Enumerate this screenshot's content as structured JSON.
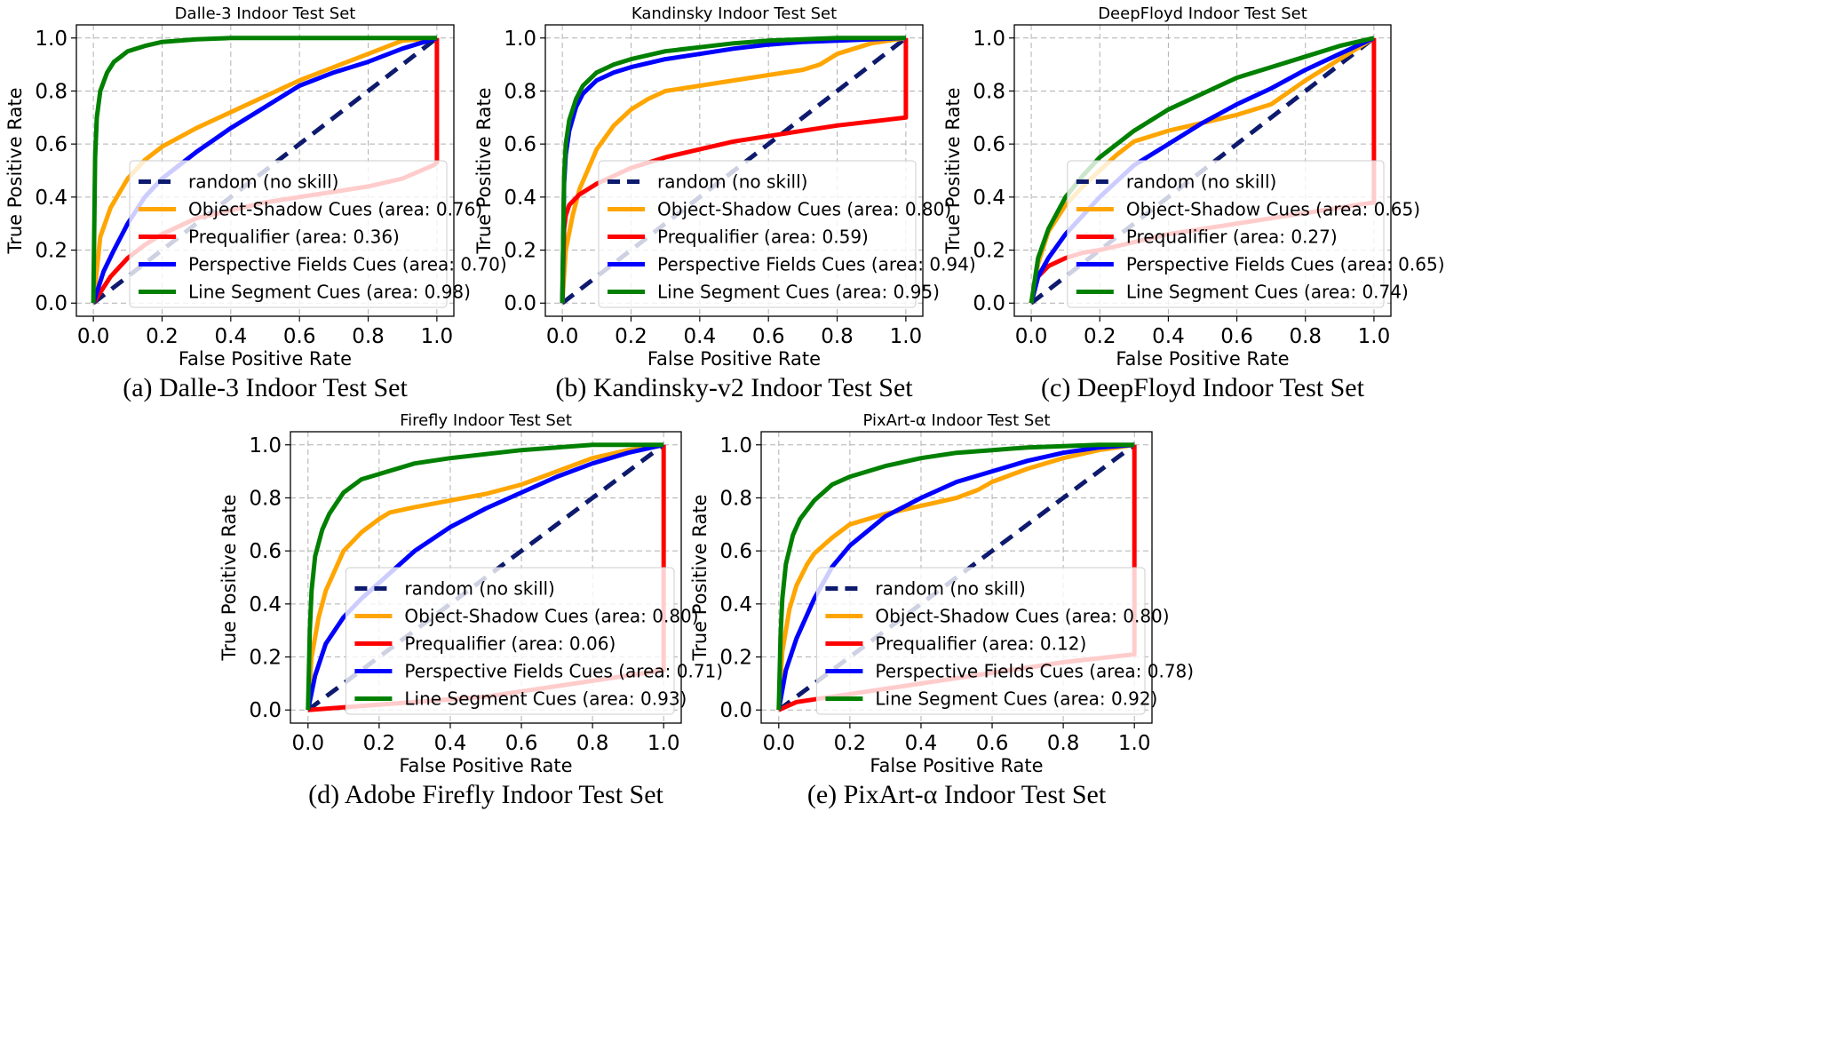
{
  "chart_data": [
    {
      "type": "line",
      "title": "Dalle-3 Indoor Test Set",
      "caption": "(a) Dalle-3 Indoor Test Set",
      "xlabel": "False Positive Rate",
      "ylabel": "True Positive Rate",
      "xlim": [
        0,
        1
      ],
      "ylim": [
        0,
        1
      ],
      "xticks": [
        "0.0",
        "0.2",
        "0.4",
        "0.6",
        "0.8",
        "1.0"
      ],
      "yticks": [
        "0.0",
        "0.2",
        "0.4",
        "0.6",
        "0.8",
        "1.0"
      ],
      "grid": true,
      "legend_position": "lower-right",
      "series": [
        {
          "name": "random (no skill)",
          "color": "#0d1a6e",
          "dashed": true,
          "x": [
            0,
            1
          ],
          "y": [
            0,
            1
          ]
        },
        {
          "name": "Object-Shadow Cues (area: 0.76)",
          "color": "#ffa500",
          "x": [
            0,
            0.02,
            0.05,
            0.1,
            0.15,
            0.2,
            0.3,
            0.4,
            0.5,
            0.6,
            0.7,
            0.8,
            0.9,
            1.0
          ],
          "y": [
            0,
            0.25,
            0.36,
            0.47,
            0.54,
            0.59,
            0.66,
            0.72,
            0.78,
            0.84,
            0.89,
            0.94,
            0.99,
            1.0
          ]
        },
        {
          "name": "Prequalifier (area: 0.36)",
          "color": "#ff0000",
          "x": [
            0,
            0.05,
            0.1,
            0.15,
            0.2,
            0.3,
            0.4,
            0.5,
            0.6,
            0.7,
            0.8,
            0.9,
            0.99,
            1.0,
            1.0
          ],
          "y": [
            0,
            0.1,
            0.17,
            0.22,
            0.26,
            0.32,
            0.35,
            0.38,
            0.4,
            0.42,
            0.44,
            0.47,
            0.52,
            0.53,
            1.0
          ]
        },
        {
          "name": "Perspective Fields Cues (area: 0.70)",
          "color": "#0000ff",
          "x": [
            0,
            0.03,
            0.06,
            0.1,
            0.15,
            0.2,
            0.3,
            0.4,
            0.5,
            0.6,
            0.7,
            0.8,
            0.9,
            1.0
          ],
          "y": [
            0,
            0.12,
            0.2,
            0.3,
            0.4,
            0.47,
            0.57,
            0.66,
            0.74,
            0.82,
            0.87,
            0.91,
            0.96,
            1.0
          ]
        },
        {
          "name": "Line Segment Cues (area: 0.98)",
          "color": "#008000",
          "x": [
            0,
            0.005,
            0.01,
            0.02,
            0.04,
            0.06,
            0.08,
            0.1,
            0.15,
            0.2,
            0.3,
            0.4,
            0.5,
            1.0
          ],
          "y": [
            0,
            0.55,
            0.7,
            0.8,
            0.87,
            0.91,
            0.93,
            0.95,
            0.97,
            0.985,
            0.995,
            1.0,
            1.0,
            1.0
          ]
        }
      ]
    },
    {
      "type": "line",
      "title": "Kandinsky Indoor Test Set",
      "caption": "(b) Kandinsky-v2 Indoor Test Set",
      "xlabel": "False Positive Rate",
      "ylabel": "True Positive Rate",
      "xlim": [
        0,
        1
      ],
      "ylim": [
        0,
        1
      ],
      "xticks": [
        "0.0",
        "0.2",
        "0.4",
        "0.6",
        "0.8",
        "1.0"
      ],
      "yticks": [
        "0.0",
        "0.2",
        "0.4",
        "0.6",
        "0.8",
        "1.0"
      ],
      "grid": true,
      "legend_position": "lower-right",
      "series": [
        {
          "name": "random (no skill)",
          "color": "#0d1a6e",
          "dashed": true,
          "x": [
            0,
            1
          ],
          "y": [
            0,
            1
          ]
        },
        {
          "name": "Object-Shadow Cues (area: 0.80)",
          "color": "#ffa500",
          "x": [
            0,
            0.01,
            0.03,
            0.05,
            0.08,
            0.1,
            0.15,
            0.2,
            0.25,
            0.3,
            0.4,
            0.5,
            0.6,
            0.7,
            0.75,
            0.8,
            0.9,
            1.0
          ],
          "y": [
            0,
            0.2,
            0.33,
            0.43,
            0.52,
            0.58,
            0.67,
            0.73,
            0.77,
            0.8,
            0.82,
            0.84,
            0.86,
            0.88,
            0.9,
            0.94,
            0.98,
            1.0
          ]
        },
        {
          "name": "Prequalifier (area: 0.59)",
          "color": "#ff0000",
          "x": [
            0,
            0.005,
            0.01,
            0.02,
            0.05,
            0.1,
            0.2,
            0.3,
            0.4,
            0.5,
            0.6,
            0.7,
            0.8,
            0.9,
            1.0,
            1.0
          ],
          "y": [
            0,
            0.28,
            0.33,
            0.37,
            0.41,
            0.45,
            0.51,
            0.55,
            0.58,
            0.61,
            0.63,
            0.65,
            0.67,
            0.685,
            0.7,
            1.0
          ]
        },
        {
          "name": "Perspective Fields Cues (area: 0.94)",
          "color": "#0000ff",
          "x": [
            0,
            0.005,
            0.01,
            0.02,
            0.04,
            0.06,
            0.1,
            0.15,
            0.2,
            0.3,
            0.4,
            0.5,
            0.6,
            0.7,
            0.8,
            0.9,
            1.0
          ],
          "y": [
            0,
            0.45,
            0.56,
            0.65,
            0.74,
            0.79,
            0.84,
            0.87,
            0.89,
            0.92,
            0.94,
            0.96,
            0.975,
            0.985,
            0.99,
            0.995,
            1.0
          ]
        },
        {
          "name": "Line Segment Cues (area: 0.95)",
          "color": "#008000",
          "x": [
            0,
            0.005,
            0.01,
            0.02,
            0.04,
            0.06,
            0.1,
            0.15,
            0.2,
            0.3,
            0.4,
            0.5,
            0.6,
            0.7,
            0.8,
            0.9,
            1.0
          ],
          "y": [
            0,
            0.48,
            0.6,
            0.69,
            0.77,
            0.82,
            0.87,
            0.9,
            0.92,
            0.95,
            0.965,
            0.98,
            0.99,
            0.995,
            1.0,
            1.0,
            1.0
          ]
        }
      ]
    },
    {
      "type": "line",
      "title": "DeepFloyd Indoor Test Set",
      "caption": "(c) DeepFloyd Indoor Test Set",
      "xlabel": "False Positive Rate",
      "ylabel": "True Positive Rate",
      "xlim": [
        0,
        1
      ],
      "ylim": [
        0,
        1
      ],
      "xticks": [
        "0.0",
        "0.2",
        "0.4",
        "0.6",
        "0.8",
        "1.0"
      ],
      "yticks": [
        "0.0",
        "0.2",
        "0.4",
        "0.6",
        "0.8",
        "1.0"
      ],
      "grid": true,
      "legend_position": "lower-right",
      "series": [
        {
          "name": "random (no skill)",
          "color": "#0d1a6e",
          "dashed": true,
          "x": [
            0,
            1
          ],
          "y": [
            0,
            1
          ]
        },
        {
          "name": "Object-Shadow Cues (area: 0.65)",
          "color": "#ffa500",
          "x": [
            0,
            0.02,
            0.05,
            0.1,
            0.15,
            0.2,
            0.25,
            0.3,
            0.4,
            0.5,
            0.6,
            0.7,
            0.8,
            0.9,
            1.0
          ],
          "y": [
            0,
            0.15,
            0.27,
            0.37,
            0.44,
            0.5,
            0.56,
            0.61,
            0.65,
            0.68,
            0.71,
            0.75,
            0.84,
            0.92,
            1.0
          ]
        },
        {
          "name": "Prequalifier (area: 0.27)",
          "color": "#ff0000",
          "x": [
            0,
            0.02,
            0.05,
            0.1,
            0.15,
            0.2,
            0.3,
            0.4,
            0.5,
            0.6,
            0.7,
            0.8,
            0.9,
            1.0,
            1.0
          ],
          "y": [
            0,
            0.1,
            0.14,
            0.17,
            0.19,
            0.2,
            0.23,
            0.26,
            0.28,
            0.3,
            0.32,
            0.34,
            0.36,
            0.38,
            1.0
          ]
        },
        {
          "name": "Perspective Fields Cues (area: 0.65)",
          "color": "#0000ff",
          "x": [
            0,
            0.02,
            0.05,
            0.1,
            0.15,
            0.2,
            0.3,
            0.4,
            0.5,
            0.6,
            0.7,
            0.8,
            0.9,
            1.0
          ],
          "y": [
            0,
            0.1,
            0.17,
            0.26,
            0.33,
            0.4,
            0.52,
            0.6,
            0.68,
            0.75,
            0.81,
            0.88,
            0.94,
            1.0
          ]
        },
        {
          "name": "Line Segment Cues (area: 0.74)",
          "color": "#008000",
          "x": [
            0,
            0.02,
            0.05,
            0.1,
            0.15,
            0.2,
            0.3,
            0.4,
            0.5,
            0.6,
            0.7,
            0.8,
            0.9,
            1.0
          ],
          "y": [
            0,
            0.17,
            0.28,
            0.4,
            0.48,
            0.55,
            0.65,
            0.73,
            0.79,
            0.85,
            0.89,
            0.93,
            0.97,
            1.0
          ]
        }
      ]
    },
    {
      "type": "line",
      "title": "Firefly Indoor Test Set",
      "caption": "(d) Adobe Firefly Indoor Test Set",
      "xlabel": "False Positive Rate",
      "ylabel": "True Positive Rate",
      "xlim": [
        0,
        1
      ],
      "ylim": [
        0,
        1
      ],
      "xticks": [
        "0.0",
        "0.2",
        "0.4",
        "0.6",
        "0.8",
        "1.0"
      ],
      "yticks": [
        "0.0",
        "0.2",
        "0.4",
        "0.6",
        "0.8",
        "1.0"
      ],
      "grid": true,
      "legend_position": "lower-right",
      "series": [
        {
          "name": "random (no skill)",
          "color": "#0d1a6e",
          "dashed": true,
          "x": [
            0,
            1
          ],
          "y": [
            0,
            1
          ]
        },
        {
          "name": "Object-Shadow Cues (area: 0.80)",
          "color": "#ffa500",
          "x": [
            0,
            0.01,
            0.03,
            0.05,
            0.08,
            0.1,
            0.15,
            0.2,
            0.23,
            0.3,
            0.4,
            0.5,
            0.6,
            0.7,
            0.8,
            0.9,
            1.0
          ],
          "y": [
            0,
            0.2,
            0.35,
            0.45,
            0.54,
            0.6,
            0.67,
            0.72,
            0.745,
            0.765,
            0.79,
            0.815,
            0.85,
            0.9,
            0.95,
            0.98,
            1.0
          ]
        },
        {
          "name": "Prequalifier (area: 0.06)",
          "color": "#ff0000",
          "x": [
            0,
            0.1,
            0.2,
            0.3,
            0.4,
            0.5,
            0.6,
            0.7,
            0.8,
            0.9,
            1.0,
            1.0
          ],
          "y": [
            0,
            0.01,
            0.02,
            0.03,
            0.04,
            0.05,
            0.07,
            0.09,
            0.11,
            0.13,
            0.15,
            1.0
          ]
        },
        {
          "name": "Perspective Fields Cues (area: 0.71)",
          "color": "#0000ff",
          "x": [
            0,
            0.02,
            0.05,
            0.1,
            0.15,
            0.2,
            0.25,
            0.3,
            0.4,
            0.5,
            0.6,
            0.7,
            0.8,
            0.9,
            1.0
          ],
          "y": [
            0,
            0.13,
            0.25,
            0.35,
            0.42,
            0.48,
            0.54,
            0.6,
            0.69,
            0.76,
            0.82,
            0.88,
            0.93,
            0.97,
            1.0
          ]
        },
        {
          "name": "Line Segment Cues (area: 0.93)",
          "color": "#008000",
          "x": [
            0,
            0.005,
            0.01,
            0.02,
            0.04,
            0.06,
            0.08,
            0.1,
            0.15,
            0.2,
            0.3,
            0.4,
            0.5,
            0.6,
            0.7,
            0.8,
            1.0
          ],
          "y": [
            0,
            0.3,
            0.45,
            0.58,
            0.68,
            0.74,
            0.78,
            0.82,
            0.87,
            0.89,
            0.93,
            0.95,
            0.965,
            0.98,
            0.99,
            1.0,
            1.0
          ]
        }
      ]
    },
    {
      "type": "line",
      "title": "PixArt-α Indoor Test Set",
      "caption": "(e) PixArt-α Indoor Test Set",
      "xlabel": "False Positive Rate",
      "ylabel": "True Positive Rate",
      "xlim": [
        0,
        1
      ],
      "ylim": [
        0,
        1
      ],
      "xticks": [
        "0.0",
        "0.2",
        "0.4",
        "0.6",
        "0.8",
        "1.0"
      ],
      "yticks": [
        "0.0",
        "0.2",
        "0.4",
        "0.6",
        "0.8",
        "1.0"
      ],
      "grid": true,
      "legend_position": "lower-right",
      "series": [
        {
          "name": "random (no skill)",
          "color": "#0d1a6e",
          "dashed": true,
          "x": [
            0,
            1
          ],
          "y": [
            0,
            1
          ]
        },
        {
          "name": "Object-Shadow Cues (area: 0.80)",
          "color": "#ffa500",
          "x": [
            0,
            0.01,
            0.03,
            0.05,
            0.08,
            0.1,
            0.15,
            0.2,
            0.3,
            0.4,
            0.5,
            0.56,
            0.6,
            0.7,
            0.8,
            0.9,
            1.0
          ],
          "y": [
            0,
            0.22,
            0.38,
            0.47,
            0.55,
            0.59,
            0.65,
            0.7,
            0.74,
            0.77,
            0.8,
            0.83,
            0.86,
            0.91,
            0.95,
            0.98,
            1.0
          ]
        },
        {
          "name": "Prequalifier (area: 0.12)",
          "color": "#ff0000",
          "x": [
            0,
            0.05,
            0.1,
            0.2,
            0.3,
            0.4,
            0.5,
            0.6,
            0.7,
            0.8,
            0.9,
            1.0,
            1.0
          ],
          "y": [
            0,
            0.03,
            0.04,
            0.06,
            0.08,
            0.1,
            0.12,
            0.14,
            0.16,
            0.18,
            0.195,
            0.21,
            1.0
          ]
        },
        {
          "name": "Perspective Fields Cues (area: 0.78)",
          "color": "#0000ff",
          "x": [
            0,
            0.02,
            0.05,
            0.1,
            0.15,
            0.2,
            0.3,
            0.4,
            0.5,
            0.6,
            0.7,
            0.8,
            0.9,
            1.0
          ],
          "y": [
            0,
            0.15,
            0.27,
            0.42,
            0.54,
            0.62,
            0.73,
            0.8,
            0.86,
            0.9,
            0.94,
            0.97,
            0.99,
            1.0
          ]
        },
        {
          "name": "Line Segment Cues (area: 0.92)",
          "color": "#008000",
          "x": [
            0,
            0.005,
            0.01,
            0.02,
            0.04,
            0.06,
            0.1,
            0.15,
            0.2,
            0.3,
            0.4,
            0.5,
            0.6,
            0.7,
            0.8,
            0.9,
            1.0
          ],
          "y": [
            0,
            0.28,
            0.42,
            0.55,
            0.66,
            0.72,
            0.79,
            0.85,
            0.88,
            0.92,
            0.95,
            0.97,
            0.98,
            0.99,
            0.995,
            1.0,
            1.0
          ]
        }
      ]
    }
  ]
}
